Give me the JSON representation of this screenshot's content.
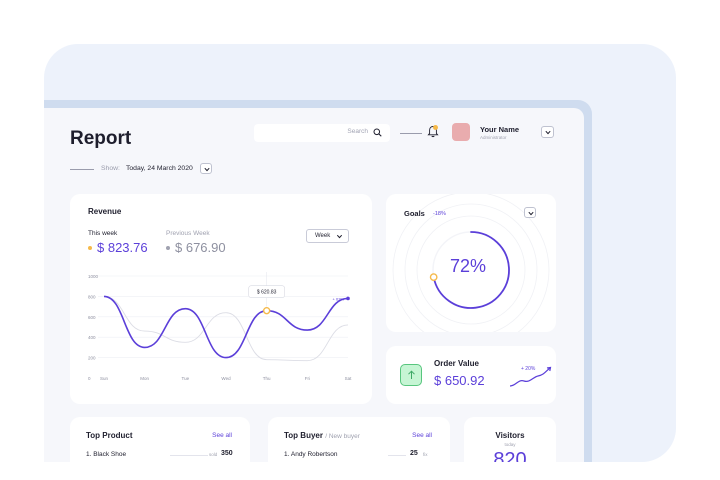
{
  "header": {
    "title": "Report",
    "search_placeholder": "Search",
    "user_name": "Your Name",
    "user_role": "Administrator"
  },
  "show": {
    "label": "Show:",
    "value": "Today, 24 March 2020"
  },
  "revenue": {
    "title": "Revenue",
    "this_week_label": "This week",
    "this_week_value": "$ 823.76",
    "previous_week_label": "Previous Week",
    "previous_week_value": "$ 676.90",
    "period": "Week",
    "tooltip": "$ 620.83",
    "change": "+ 63%"
  },
  "chart_data": {
    "type": "line",
    "categories": [
      "Sun",
      "Mon",
      "Tue",
      "Wed",
      "Thu",
      "Fri",
      "Sat"
    ],
    "y_ticks": [
      "0",
      "200",
      "400",
      "600",
      "800",
      "1000"
    ],
    "ylim": [
      0,
      1000
    ],
    "grid": true,
    "series": [
      {
        "values": [
          800,
          300,
          680,
          200,
          660,
          470,
          780
        ],
        "color": "#5b3fd9"
      },
      {
        "values": [
          800,
          460,
          350,
          640,
          180,
          170,
          520
        ],
        "color": "#dcdde5"
      }
    ],
    "highlight": {
      "category": "Thu",
      "value": 660
    }
  },
  "goals": {
    "title": "Goals",
    "change": "-18%",
    "value": "72%",
    "progress": 0.72
  },
  "order": {
    "title": "Order Value",
    "value": "$ 650.92",
    "change": "+ 20%"
  },
  "top_product": {
    "title": "Top Product",
    "see_all": "See all",
    "rows": [
      {
        "label": "1. Black Shoe",
        "unit": "sold",
        "value": "350"
      }
    ]
  },
  "top_buyer": {
    "title": "Top Buyer",
    "subtitle": "/ New buyer",
    "see_all": "See all",
    "rows": [
      {
        "label": "1. Andy Robertson",
        "value": "25",
        "unit": "fix"
      }
    ]
  },
  "visitors": {
    "title": "Visitors",
    "subtitle": "today",
    "value": "820"
  },
  "colors": {
    "accent": "#5b3fd9",
    "highlight": "#f5b94a",
    "success": "#58c67e"
  }
}
